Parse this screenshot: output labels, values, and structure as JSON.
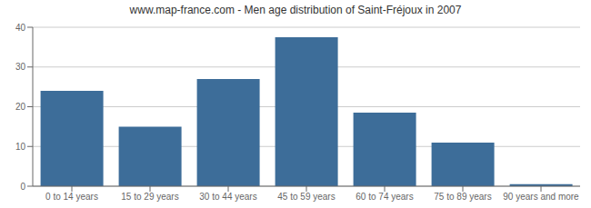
{
  "chart_data": {
    "type": "bar",
    "title": "www.map-france.com - Men age distribution of Saint-Fréjoux in 2007",
    "categories": [
      "0 to 14 years",
      "15 to 29 years",
      "30 to 44 years",
      "45 to 59 years",
      "60 to 74 years",
      "75 to 89 years",
      "90 years and more"
    ],
    "values": [
      24,
      15,
      27,
      37.5,
      18.5,
      11,
      0.5
    ],
    "color": "#3d6d99",
    "ylim": [
      0,
      40
    ],
    "yticks": [
      0,
      10,
      20,
      30,
      40
    ],
    "grid": true
  }
}
